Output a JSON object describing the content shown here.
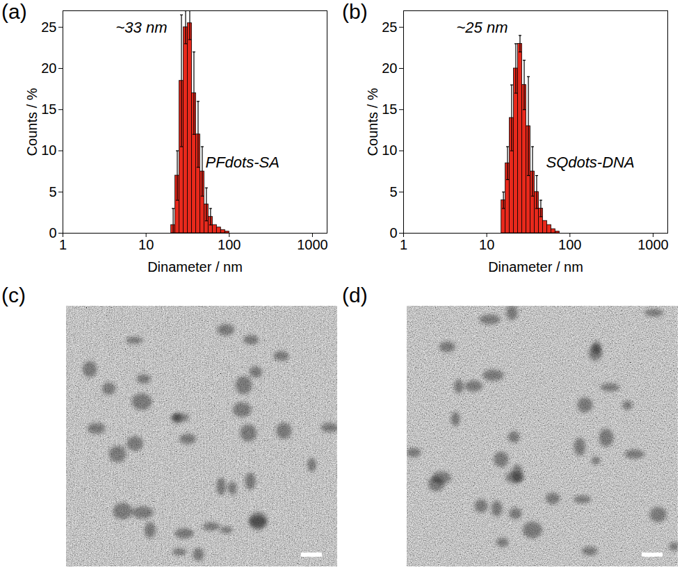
{
  "chart_data": [
    {
      "type": "histogram",
      "panel": "(a)",
      "xlabel": "Dinameter / nm",
      "ylabel": "Counts / %",
      "annotations": [
        "~33 nm",
        "PFdots-SA"
      ],
      "bins": [
        20,
        22.4,
        25.1,
        28.2,
        31.6,
        35.5,
        39.8,
        44.7,
        50.1,
        56.2,
        63.1,
        70.8,
        79.4,
        89.1,
        100
      ],
      "values": [
        1,
        7,
        18.5,
        25,
        25.5,
        17,
        12,
        7.5,
        3.5,
        2,
        1,
        0.7,
        0.4,
        0.2
      ],
      "errors": [
        2,
        3,
        8,
        2,
        2,
        5,
        4,
        3,
        2,
        1,
        null,
        null,
        null,
        null
      ],
      "color": "#e8291c",
      "log": "x",
      "grid": false,
      "xlim": [
        1,
        1500
      ],
      "xticks": [
        1,
        10,
        100,
        1000
      ],
      "ylim": [
        0,
        27
      ],
      "yticks": [
        0,
        5,
        10,
        15,
        20,
        25
      ]
    },
    {
      "type": "histogram",
      "panel": "(b)",
      "xlabel": "Dinameter / nm",
      "ylabel": "Counts / %",
      "annotations": [
        "~25 nm",
        "SQdots-DNA"
      ],
      "bins": [
        15,
        16.8,
        18.8,
        21.1,
        23.7,
        26.6,
        29.9,
        33.5,
        37.6,
        42.2,
        47.3,
        53.1,
        59.6,
        66.8,
        75
      ],
      "values": [
        4,
        8.5,
        14,
        20,
        23,
        18,
        13,
        7.5,
        5,
        3,
        1.5,
        1,
        0.5,
        0.2
      ],
      "errors": [
        1,
        2,
        4,
        3,
        1,
        3,
        6,
        3,
        2,
        1,
        null,
        null,
        null,
        null
      ],
      "color": "#e8291c",
      "log": "x",
      "grid": false,
      "xlim": [
        1,
        1500
      ],
      "xticks": [
        1,
        10,
        100,
        1000
      ],
      "ylim": [
        0,
        27
      ],
      "yticks": [
        0,
        5,
        10,
        15,
        20,
        25
      ]
    }
  ],
  "images": [
    {
      "panel": "(c)"
    },
    {
      "panel": "(d)"
    }
  ]
}
